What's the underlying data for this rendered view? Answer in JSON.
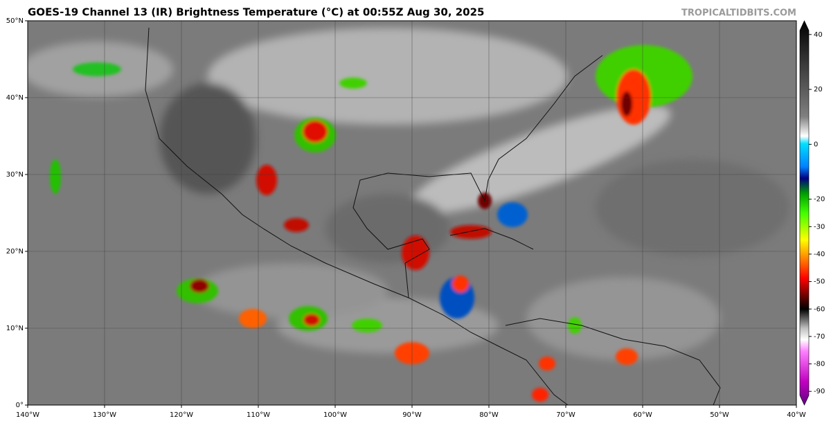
{
  "header": {
    "title": "GOES-19 Channel 13 (IR) Brightness Temperature (°C) at 00:55Z Aug 30, 2025",
    "watermark": "TROPICALTIDBITS.COM"
  },
  "map": {
    "xlim": [
      -140,
      -40
    ],
    "ylim": [
      0,
      50
    ],
    "xticks": [
      {
        "value": -140,
        "label": "140°W"
      },
      {
        "value": -130,
        "label": "130°W"
      },
      {
        "value": -120,
        "label": "120°W"
      },
      {
        "value": -110,
        "label": "110°W"
      },
      {
        "value": -100,
        "label": "100°W"
      },
      {
        "value": -90,
        "label": "90°W"
      },
      {
        "value": -80,
        "label": "80°W"
      },
      {
        "value": -70,
        "label": "70°W"
      },
      {
        "value": -60,
        "label": "60°W"
      },
      {
        "value": -50,
        "label": "50°W"
      },
      {
        "value": -40,
        "label": "40°W"
      }
    ],
    "yticks": [
      {
        "value": 0,
        "label": "0°"
      },
      {
        "value": 10,
        "label": "10°N"
      },
      {
        "value": 20,
        "label": "20°N"
      },
      {
        "value": 30,
        "label": "30°N"
      },
      {
        "value": 40,
        "label": "40°N"
      },
      {
        "value": 50,
        "label": "50°N"
      }
    ],
    "grid": true
  },
  "colorbar": {
    "clim": [
      -95,
      45
    ],
    "ticks": [
      40,
      20,
      0,
      -20,
      -30,
      -40,
      -50,
      -60,
      -70,
      -80,
      -90
    ]
  }
}
